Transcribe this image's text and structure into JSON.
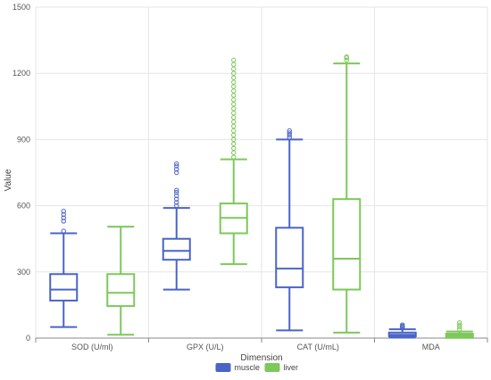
{
  "chart_data": {
    "type": "boxplot",
    "xlabel": "Dimension",
    "ylabel": "Value",
    "ylim": [
      0,
      1500
    ],
    "yticks": [
      0,
      300,
      600,
      900,
      1200,
      1500
    ],
    "categories": [
      "SOD (U/ml)",
      "GPX (U/L)",
      "CAT (U/mL)",
      "MDA"
    ],
    "grid": true,
    "legend_position": "bottom",
    "series": [
      {
        "name": "muscle",
        "color": "#4a64c8",
        "boxes": [
          {
            "min": 50,
            "q1": 170,
            "median": 220,
            "q3": 290,
            "max": 475,
            "outliers": [
              485,
              530,
              545,
              560,
              575
            ]
          },
          {
            "min": 220,
            "q1": 355,
            "median": 395,
            "q3": 450,
            "max": 590,
            "outliers": [
              600,
              615,
              630,
              645,
              660,
              670,
              750,
              765,
              780,
              790
            ]
          },
          {
            "min": 35,
            "q1": 230,
            "median": 315,
            "q3": 500,
            "max": 900,
            "outliers": [
              910,
              920,
              930,
              940
            ]
          },
          {
            "min": 2,
            "q1": 8,
            "median": 15,
            "q3": 25,
            "max": 40,
            "outliers": [
              45,
              50,
              55,
              60
            ]
          }
        ]
      },
      {
        "name": "liver",
        "color": "#7dc85a",
        "boxes": [
          {
            "min": 15,
            "q1": 145,
            "median": 205,
            "q3": 290,
            "max": 505,
            "outliers": []
          },
          {
            "min": 335,
            "q1": 475,
            "median": 545,
            "q3": 610,
            "max": 810,
            "outliers": [
              820,
              840,
              860,
              880,
              900,
              920,
              940,
              960,
              980,
              1000,
              1020,
              1040,
              1060,
              1080,
              1100,
              1120,
              1140,
              1160,
              1180,
              1200,
              1220,
              1240,
              1260
            ]
          },
          {
            "min": 25,
            "q1": 220,
            "median": 360,
            "q3": 630,
            "max": 1245,
            "outliers": [
              1260,
              1270,
              1275
            ]
          },
          {
            "min": 1,
            "q1": 6,
            "median": 12,
            "q3": 20,
            "max": 30,
            "outliers": [
              40,
              50,
              60,
              70
            ]
          }
        ]
      }
    ]
  }
}
